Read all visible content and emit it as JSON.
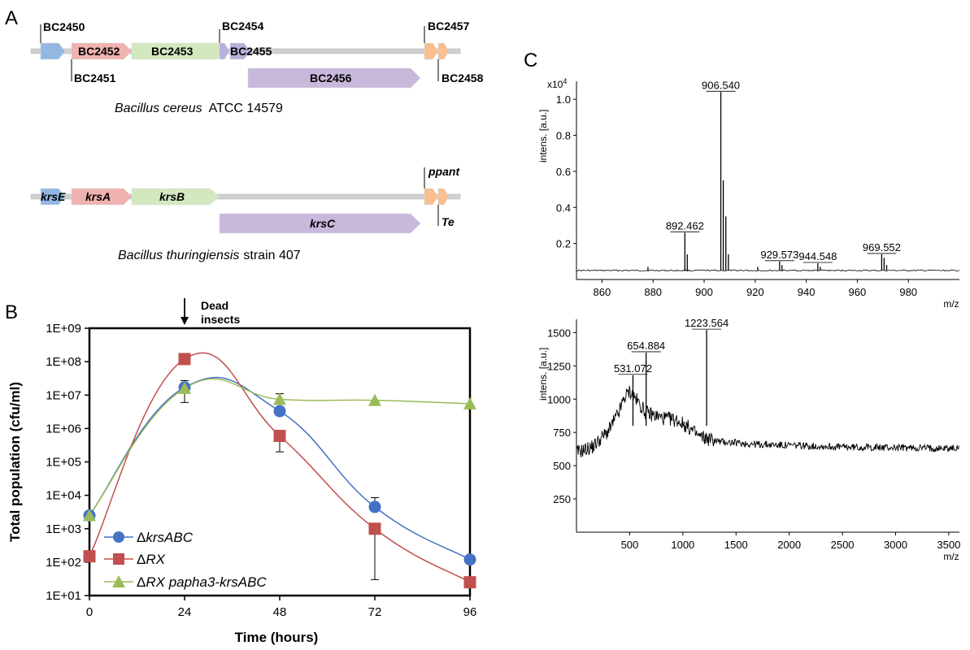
{
  "panel_labels": {
    "a": "A",
    "b": "B",
    "c": "C"
  },
  "operon1": {
    "genes": [
      {
        "name": "BC2450",
        "color": "#92b8e2"
      },
      {
        "name": "BC2451",
        "color": "#f0b2b0"
      },
      {
        "name": "BC2452",
        "color": "#f0b2b0"
      },
      {
        "name": "BC2453",
        "color": "#d4e8c0"
      },
      {
        "name": "BC2454",
        "color": "#b8b0dc"
      },
      {
        "name": "BC2455",
        "color": "#b8b0dc"
      },
      {
        "name": "BC2456",
        "color": "#c8b8dc"
      },
      {
        "name": "BC2457",
        "color": "#f8c090"
      },
      {
        "name": "BC2458",
        "color": "#f8c090"
      }
    ],
    "species": "Bacillus cereus",
    "strain": "ATCC 14579"
  },
  "operon2": {
    "genes": [
      {
        "name": "krsE",
        "color": "#92b8e2"
      },
      {
        "name": "krsA",
        "color": "#f0b2b0"
      },
      {
        "name": "krsB",
        "color": "#d4e8c0"
      },
      {
        "name": "krsC",
        "color": "#c8b8dc"
      },
      {
        "name": "ppant",
        "color": "#f8c090"
      },
      {
        "name": "Te",
        "color": "#f8c090"
      }
    ],
    "species": "Bacillus thuringiensis",
    "strain": "strain 407"
  },
  "chart_data": [
    {
      "type": "line",
      "panel": "B",
      "annotation": "Dead insects",
      "xlabel": "Time (hours)",
      "ylabel": "Total population (cfu/ml)",
      "x": [
        0,
        24,
        48,
        72,
        96
      ],
      "x_tick_labels": [
        "0",
        "24",
        "48",
        "72",
        "96"
      ],
      "y_scale": "log",
      "ylim": [
        10,
        1000000000
      ],
      "y_tick_labels": [
        "1E+01",
        "1E+02",
        "1E+03",
        "1E+04",
        "1E+05",
        "1E+06",
        "1E+07",
        "1E+08",
        "1E+09"
      ],
      "legend_position": "bottom-left",
      "series": [
        {
          "name": "ΔkrsABC",
          "color": "#4472c4",
          "marker": "circle",
          "values": [
            2500,
            17000000,
            3300000,
            4500,
            120
          ],
          "err": [
            null,
            27000000,
            null,
            8500,
            null
          ]
        },
        {
          "name": "ΔRX",
          "color": "#c0504d",
          "marker": "square",
          "values": [
            150,
            120000000,
            600000,
            1000,
            25
          ],
          "err": [
            null,
            null,
            200000,
            30,
            null
          ]
        },
        {
          "name": "ΔRX papha3-krsABC",
          "color": "#9bbb59",
          "marker": "triangle",
          "values": [
            2500,
            16000000,
            7500000,
            7000000,
            5500000
          ],
          "err": [
            null,
            6000000,
            11000000,
            null,
            null
          ]
        }
      ]
    },
    {
      "type": "spectrum",
      "panel": "C-top",
      "xlabel": "m/z",
      "ylabel": "intens. [a.u.]",
      "y_multiplier": "x10",
      "y_exponent": "4",
      "xlim": [
        850,
        1000
      ],
      "ylim": [
        0,
        1.1
      ],
      "x_ticks": [
        860,
        880,
        900,
        920,
        940,
        960,
        980
      ],
      "y_ticks": [
        0.2,
        0.4,
        0.6,
        0.8,
        1.0
      ],
      "y_tick_labels": [
        "0.2",
        "0.4",
        "0.6",
        "0.8",
        "1.0"
      ],
      "baseline": 0.05,
      "peaks": [
        {
          "mz": 892.462,
          "intensity": 0.26,
          "label": "892.462"
        },
        {
          "mz": 893.4,
          "intensity": 0.14
        },
        {
          "mz": 906.54,
          "intensity": 1.04,
          "label": "906.540"
        },
        {
          "mz": 907.5,
          "intensity": 0.55
        },
        {
          "mz": 908.5,
          "intensity": 0.35
        },
        {
          "mz": 909.5,
          "intensity": 0.14
        },
        {
          "mz": 878.0,
          "intensity": 0.07
        },
        {
          "mz": 921.0,
          "intensity": 0.07
        },
        {
          "mz": 929.573,
          "intensity": 0.1,
          "label": "929.573"
        },
        {
          "mz": 930.5,
          "intensity": 0.08
        },
        {
          "mz": 944.548,
          "intensity": 0.09,
          "label": "944.548"
        },
        {
          "mz": 945.5,
          "intensity": 0.07
        },
        {
          "mz": 969.552,
          "intensity": 0.14,
          "label": "969.552"
        },
        {
          "mz": 970.5,
          "intensity": 0.12
        },
        {
          "mz": 971.5,
          "intensity": 0.08
        }
      ]
    },
    {
      "type": "spectrum",
      "panel": "C-bottom",
      "xlabel": "m/z",
      "ylabel": "intens. [a.u.]",
      "xlim": [
        0,
        3600
      ],
      "ylim": [
        0,
        1600
      ],
      "x_ticks": [
        500,
        1000,
        1500,
        2000,
        2500,
        3000,
        3500
      ],
      "y_ticks": [
        250,
        500,
        750,
        1000,
        1250,
        1500
      ],
      "envelope": [
        [
          0,
          600
        ],
        [
          150,
          640
        ],
        [
          300,
          760
        ],
        [
          400,
          900
        ],
        [
          450,
          1010
        ],
        [
          500,
          1060
        ],
        [
          560,
          1000
        ],
        [
          650,
          900
        ],
        [
          800,
          860
        ],
        [
          950,
          840
        ],
        [
          1050,
          790
        ],
        [
          1150,
          720
        ],
        [
          1350,
          680
        ],
        [
          1700,
          660
        ],
        [
          2500,
          640
        ],
        [
          3600,
          630
        ]
      ],
      "peaks": [
        {
          "mz": 531.072,
          "intensity": 1180,
          "label": "531.072"
        },
        {
          "mz": 654.884,
          "intensity": 1350,
          "label": "654.884"
        },
        {
          "mz": 1223.564,
          "intensity": 1520,
          "label": "1223.564"
        }
      ]
    }
  ]
}
